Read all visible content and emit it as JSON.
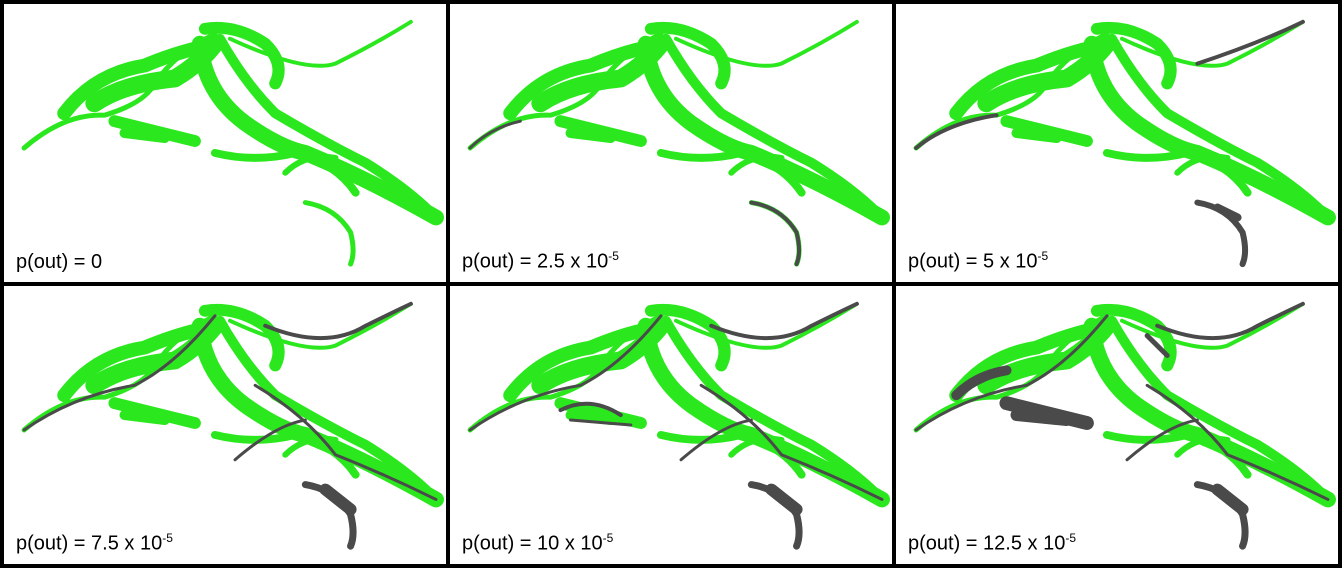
{
  "panels": [
    {
      "label": "p(out) = 0"
    },
    {
      "label": "p(out) = 2.5 x 10",
      "exponent": "-5"
    },
    {
      "label": "p(out) = 5 x 10",
      "exponent": "-5"
    },
    {
      "label": "p(out) = 7.5 x 10",
      "exponent": "-5"
    },
    {
      "label": "p(out) = 10 x 10",
      "exponent": "-5"
    },
    {
      "label": "p(out) = 12.5 x 10",
      "exponent": "-5"
    }
  ]
}
